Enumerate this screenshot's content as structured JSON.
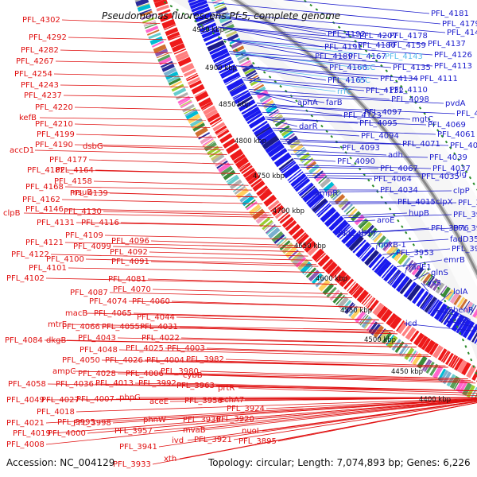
{
  "title": "Pseudomonas fluorescens Pf-5, complete genome",
  "footer": {
    "accession": "Accession: NC_004129",
    "summary": "Topology: circular; Length: 7,074,893 bp; Genes: 6,226"
  },
  "kbp_labels": [
    "4950 kbp",
    "4900 kbp",
    "4850 kbp",
    "4800 kbp",
    "4750 kbp",
    "4700 kbp",
    "4650 kbp",
    "4600 kbp",
    "4550 kbp",
    "4500 kbp",
    "4450 kbp",
    "4400 kbp"
  ],
  "colors": {
    "left_labels": "#e01010",
    "right_labels": "#1a1acc",
    "right_highlight": "#55bbee",
    "forward_genes": "#1a1aee",
    "reverse_genes": "#ee1a1a",
    "backbone": "#888888"
  },
  "left_labels": [
    "PFL_4302",
    "PFL_4292",
    "PFL_4282",
    "PFL_4267",
    "PFL_4254",
    "PFL_4243",
    "PFL_4237",
    "PFL_4220",
    "kefB",
    "PFL_4210",
    "PFL_4199",
    "PFL_4190",
    "accD1",
    "dsbG",
    "PFL_4177",
    "PFL_4182",
    "PFL_4164",
    "PFL_4168",
    "PFL_4158",
    "PFL_4162",
    "msuE",
    "PFL_4139",
    "PFL_4146",
    "clpB",
    "PFL_4130",
    "PFL_4131",
    "PFL_4116",
    "PFL_4109",
    "PFL_4121",
    "PFL_4099",
    "PFL_4096",
    "PFL_4122",
    "PFL_4100",
    "PFL_4092",
    "PFL_4101",
    "PFL_4091",
    "PFL_4102",
    "PFL_4081",
    "PFL_4087",
    "PFL_4070",
    "PFL_4074",
    "PFL_4060",
    "macB",
    "PFL_4065",
    "PFL_4044",
    "mtrE",
    "PFL_4066",
    "PFL_4055",
    "PFL_4031",
    "PFL_4084",
    "dkgB",
    "PFL_4043",
    "PFL_4022",
    "PFL_4048",
    "PFL_4025",
    "PFL_4003",
    "PFL_4050",
    "PFL_4026",
    "PFL_4004",
    "PFL_3982",
    "ampC",
    "PFL_4028",
    "PFL_4006",
    "PFL_3980",
    "cybB",
    "PFL_4058",
    "PFL_4036",
    "PFL_4013",
    "PFL_3992",
    "PFL_3963",
    "prtR",
    "PFL_4049",
    "PFL_4027",
    "PFL_4007",
    "pbpG",
    "aceE",
    "PFL_3956",
    "echA7",
    "PFL_4018",
    "PFL_3995",
    "PFL_3924",
    "PFL_3998",
    "phnW",
    "PFL_3939",
    "PFL_3920",
    "PFL_4021",
    "PFL_3957",
    "mvaB",
    "nuoI",
    "PFL_4019",
    "PFL_4000",
    "ivd",
    "PFL_3921",
    "PFL_3895",
    "PFL_4008",
    "PFL_3941",
    "PFL_3933",
    "xth"
  ],
  "right_labels": [
    "PFL_4181",
    "PFL_4179",
    "PFL_4207",
    "PFL_4192",
    "PFL_4178",
    "PFL_4148",
    "PFL_4191",
    "PFL_4180",
    "PFL_4159",
    "PFL_4137",
    "PFL_4189",
    "PFL_4167",
    "PFL_4143",
    "PFL_4126",
    "PFL_4166",
    "rrsC",
    "PFL_4135",
    "PFL_4113",
    "PFL_4165",
    "rrlC",
    "PFL_4134",
    "PFL_4111",
    "rrfC",
    "PFL_4132",
    "PFL_4110",
    "aphA",
    "farB",
    "PFL_4098",
    "pvdA",
    "PFL_4123",
    "PFL_4097",
    "PFL_4072",
    "darR",
    "PFL_4095",
    "mgtC",
    "PFL_4069",
    "PFL_4094",
    "PFL_4061",
    "PFL_4093",
    "PFL_4071",
    "PFL_4040",
    "adh",
    "PFL_4039",
    "PFL_4090",
    "PFL_4037",
    "PFL_4067",
    "PFL_4035",
    "tig",
    "PFL_4064",
    "ampR",
    "PFL_4034",
    "clpP",
    "PFL_4015",
    "clpX",
    "PFL_3974",
    "aroE",
    "hupB",
    "PFL_3961",
    "PFL_4017",
    "lon",
    "PFL_3976",
    "PFL_3945",
    "noxB-1",
    "fadD35",
    "PFL_3953",
    "PFL_3927",
    "emrB",
    "fadE1",
    "glnS",
    "cysS",
    "lolA",
    "serS",
    "benR",
    "icd",
    "benD"
  ]
}
